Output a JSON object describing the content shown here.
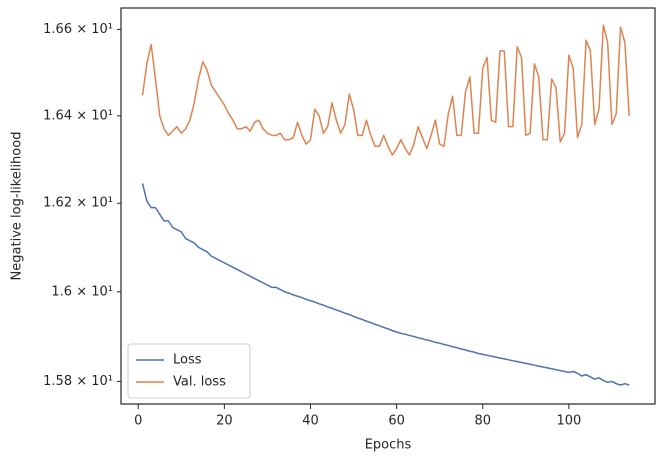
{
  "chart_data": {
    "type": "line",
    "xlabel": "Epochs",
    "ylabel": "Negative log-likelihood",
    "x": [
      1,
      2,
      3,
      4,
      5,
      6,
      7,
      8,
      9,
      10,
      11,
      12,
      13,
      14,
      15,
      16,
      17,
      18,
      19,
      20,
      21,
      22,
      23,
      24,
      25,
      26,
      27,
      28,
      29,
      30,
      31,
      32,
      33,
      34,
      35,
      36,
      37,
      38,
      39,
      40,
      41,
      42,
      43,
      44,
      45,
      46,
      47,
      48,
      49,
      50,
      51,
      52,
      53,
      54,
      55,
      56,
      57,
      58,
      59,
      60,
      61,
      62,
      63,
      64,
      65,
      66,
      67,
      68,
      69,
      70,
      71,
      72,
      73,
      74,
      75,
      76,
      77,
      78,
      79,
      80,
      81,
      82,
      83,
      84,
      85,
      86,
      87,
      88,
      89,
      90,
      91,
      92,
      93,
      94,
      95,
      96,
      97,
      98,
      99,
      100,
      101,
      102,
      103,
      104,
      105,
      106,
      107,
      108,
      109,
      110,
      111,
      112,
      113,
      114
    ],
    "series": [
      {
        "name": "Loss",
        "color": "#4c72b0",
        "values": [
          16.245,
          16.205,
          16.19,
          16.19,
          16.175,
          16.16,
          16.16,
          16.145,
          16.14,
          16.135,
          16.12,
          16.115,
          16.11,
          16.1,
          16.095,
          16.09,
          16.08,
          16.075,
          16.07,
          16.065,
          16.06,
          16.055,
          16.05,
          16.045,
          16.04,
          16.035,
          16.03,
          16.025,
          16.02,
          16.015,
          16.01,
          16.01,
          16.005,
          16.0,
          15.997,
          15.993,
          15.99,
          15.987,
          15.983,
          15.98,
          15.977,
          15.973,
          15.97,
          15.966,
          15.963,
          15.959,
          15.956,
          15.952,
          15.949,
          15.945,
          15.941,
          15.938,
          15.934,
          15.931,
          15.927,
          15.924,
          15.92,
          15.917,
          15.913,
          15.91,
          15.907,
          15.905,
          15.902,
          15.9,
          15.897,
          15.895,
          15.892,
          15.89,
          15.887,
          15.885,
          15.882,
          15.88,
          15.877,
          15.875,
          15.872,
          15.87,
          15.867,
          15.865,
          15.862,
          15.86,
          15.858,
          15.856,
          15.854,
          15.852,
          15.85,
          15.848,
          15.846,
          15.844,
          15.842,
          15.84,
          15.838,
          15.836,
          15.834,
          15.832,
          15.83,
          15.828,
          15.826,
          15.824,
          15.822,
          15.82,
          15.822,
          15.818,
          15.812,
          15.815,
          15.81,
          15.805,
          15.808,
          15.802,
          15.798,
          15.8,
          15.795,
          15.792,
          15.795,
          15.792
        ]
      },
      {
        "name": "Val. loss",
        "color": "#dd8452",
        "values": [
          16.447,
          16.52,
          16.565,
          16.485,
          16.4,
          16.37,
          16.355,
          16.365,
          16.375,
          16.36,
          16.37,
          16.39,
          16.43,
          16.485,
          16.525,
          16.505,
          16.47,
          16.455,
          16.44,
          16.425,
          16.405,
          16.39,
          16.37,
          16.37,
          16.375,
          16.365,
          16.385,
          16.39,
          16.37,
          16.36,
          16.355,
          16.355,
          16.36,
          16.345,
          16.345,
          16.35,
          16.385,
          16.355,
          16.335,
          16.345,
          16.415,
          16.4,
          16.36,
          16.375,
          16.43,
          16.39,
          16.36,
          16.38,
          16.45,
          16.415,
          16.355,
          16.355,
          16.39,
          16.355,
          16.33,
          16.33,
          16.355,
          16.33,
          16.31,
          16.325,
          16.345,
          16.325,
          16.31,
          16.335,
          16.375,
          16.35,
          16.325,
          16.355,
          16.39,
          16.335,
          16.33,
          16.405,
          16.445,
          16.355,
          16.355,
          16.455,
          16.49,
          16.36,
          16.36,
          16.51,
          16.535,
          16.39,
          16.385,
          16.55,
          16.55,
          16.375,
          16.375,
          16.56,
          16.535,
          16.355,
          16.36,
          16.52,
          16.49,
          16.345,
          16.345,
          16.485,
          16.465,
          16.34,
          16.36,
          16.54,
          16.51,
          16.35,
          16.38,
          16.575,
          16.55,
          16.38,
          16.415,
          16.61,
          16.57,
          16.38,
          16.405,
          16.605,
          16.57,
          16.4
        ]
      }
    ],
    "xlim": [
      -4,
      120
    ],
    "xticks": [
      0,
      20,
      40,
      60,
      80,
      100
    ],
    "ylim": [
      15.75,
      16.65
    ],
    "yscale": "log",
    "yticks": [
      {
        "value": 15.8,
        "label": "1.58 × 10¹"
      },
      {
        "value": 16.0,
        "label": "1.6 × 10¹"
      },
      {
        "value": 16.2,
        "label": "1.62 × 10¹"
      },
      {
        "value": 16.4,
        "label": "1.64 × 10¹"
      },
      {
        "value": 16.6,
        "label": "1.66 × 10¹"
      }
    ],
    "grid": false,
    "legend": "lower left"
  }
}
